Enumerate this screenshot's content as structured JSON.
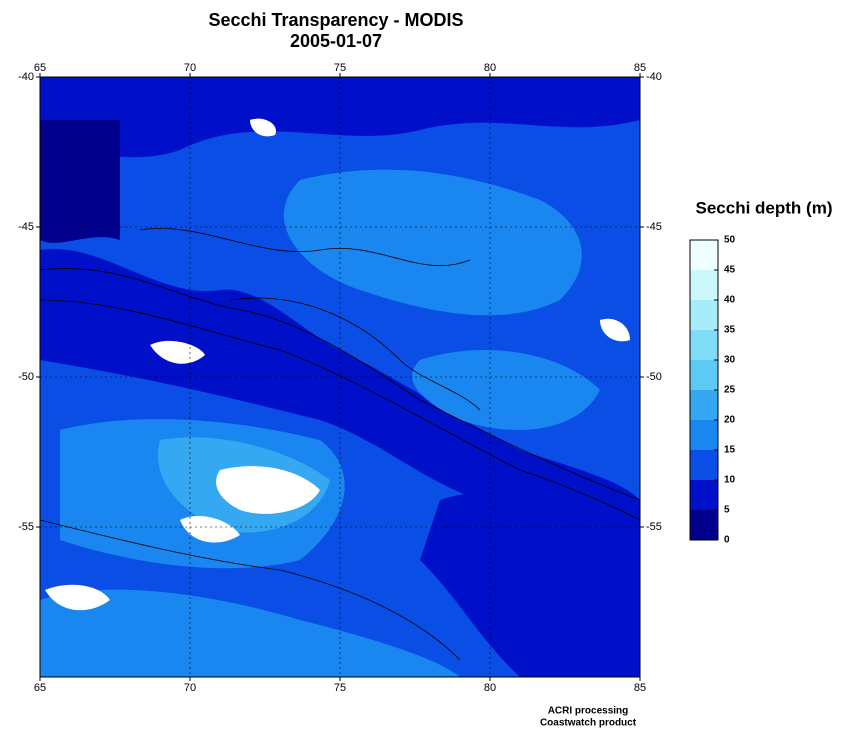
{
  "map": {
    "title": "Secchi Transparency - MODIS",
    "date": "2005-01-07",
    "xlim": [
      65,
      85
    ],
    "ylim": [
      -60,
      -40
    ],
    "xticks": [
      65,
      70,
      75,
      80,
      85
    ],
    "yticks": [
      -40,
      -45,
      -50,
      -55
    ],
    "grid": true,
    "colorbar": {
      "title": "Secchi depth (m)",
      "levels": [
        0,
        5,
        10,
        15,
        20,
        25,
        30,
        35,
        40,
        45,
        50
      ],
      "colors": [
        "#00008c",
        "#0010c8",
        "#0a4ee6",
        "#1a86f0",
        "#36a8f2",
        "#5ccaf4",
        "#80dcf6",
        "#a6ecfa",
        "#ccf8fd",
        "#eeffff"
      ]
    },
    "credits": [
      "ACRI processing",
      "Coastwatch product"
    ]
  }
}
